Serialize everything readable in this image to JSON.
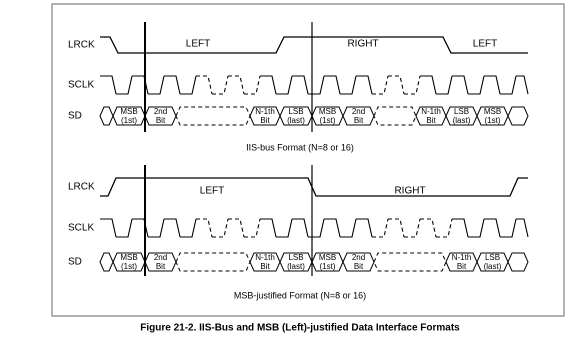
{
  "top": {
    "signals": [
      "LRCK",
      "SCLK",
      "SD"
    ],
    "lrck_labels": [
      "LEFT",
      "RIGHT",
      "LEFT"
    ],
    "sd_cells": [
      [
        "MSB",
        "(1st)"
      ],
      [
        "2nd",
        "Bit"
      ],
      [
        "N-1th",
        "Bit"
      ],
      [
        "LSB",
        "(last)"
      ],
      [
        "MSB",
        "(1st)"
      ],
      [
        "2nd",
        "Bit"
      ],
      [
        "N-1th",
        "Bit"
      ],
      [
        "LSB",
        "(last)"
      ],
      [
        "MSB",
        "(1st)"
      ]
    ],
    "caption": "IIS-bus Format (N=8 or 16)"
  },
  "bottom": {
    "signals": [
      "LRCK",
      "SCLK",
      "SD"
    ],
    "lrck_labels": [
      "LEFT",
      "RIGHT"
    ],
    "sd_cells": [
      [
        "MSB",
        "(1st)"
      ],
      [
        "2nd",
        "Bit"
      ],
      [
        "N-1th",
        "Bit"
      ],
      [
        "LSB",
        "(last)"
      ],
      [
        "MSB",
        "(1st)"
      ],
      [
        "2nd",
        "Bit"
      ],
      [
        "N-1th",
        "Bit"
      ],
      [
        "LSB",
        "(last)"
      ]
    ],
    "caption": "MSB-justified Format (N=8 or 16)"
  },
  "figure_caption": "Figure 21-2. IIS-Bus and MSB (Left)-justified Data Interface Formats"
}
